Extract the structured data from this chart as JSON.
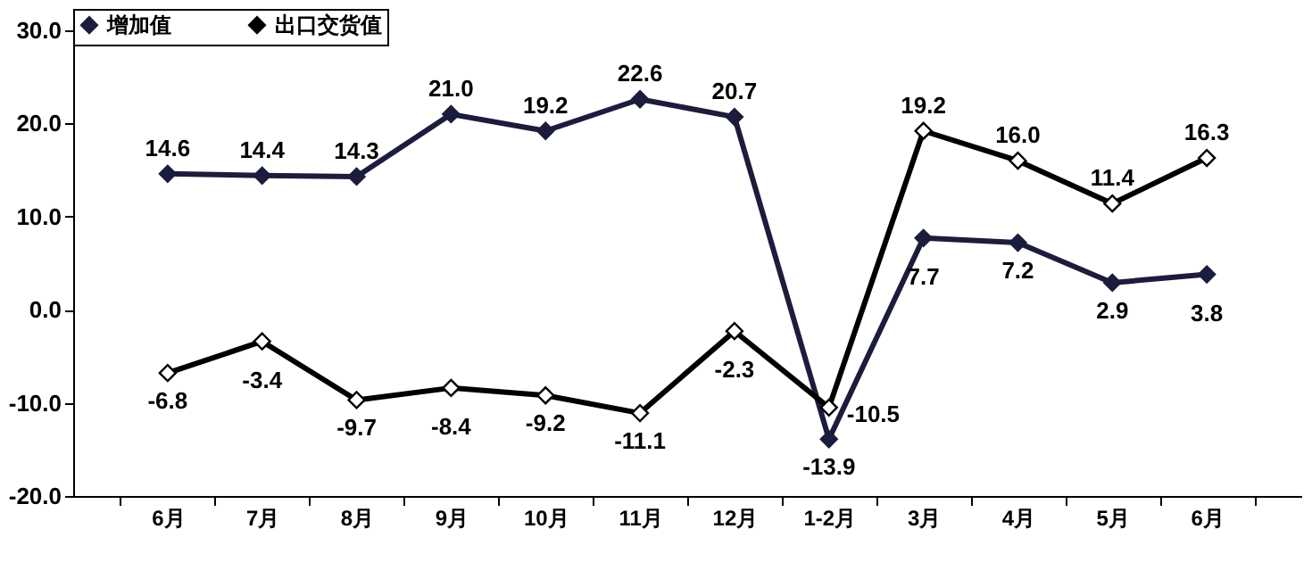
{
  "chart_data": {
    "type": "line",
    "categories": [
      "6月",
      "7月",
      "8月",
      "9月",
      "10月",
      "11月",
      "12月",
      "1-2月",
      "3月",
      "4月",
      "5月",
      "6月"
    ],
    "series": [
      {
        "name": "增加值",
        "color": "#1c1c3c",
        "values": [
          14.6,
          14.4,
          14.3,
          21.0,
          19.2,
          22.6,
          20.7,
          -13.9,
          7.7,
          7.2,
          2.9,
          3.8
        ],
        "value_labels": [
          "14.6",
          "14.4",
          "14.3",
          "21.0",
          "19.2",
          "22.6",
          "20.7",
          "-13.9",
          "7.7",
          "7.2",
          "2.9",
          "3.8"
        ]
      },
      {
        "name": "出口交货值",
        "color": "#000000",
        "values": [
          -6.8,
          -3.4,
          -9.7,
          -8.4,
          -9.2,
          -11.1,
          -2.3,
          -10.5,
          19.2,
          16.0,
          11.4,
          16.3
        ],
        "value_labels": [
          "-6.8",
          "-3.4",
          "-9.7",
          "-8.4",
          "-9.2",
          "-11.1",
          "-2.3",
          "-10.5",
          "19.2",
          "16.0",
          "11.4",
          "16.3"
        ]
      }
    ],
    "ylim": [
      -20,
      30
    ],
    "yticks": [
      {
        "value": -20,
        "label": "-20.0"
      },
      {
        "value": -10,
        "label": "-10.0"
      },
      {
        "value": 0,
        "label": "0.0"
      },
      {
        "value": 10,
        "label": "10.0"
      },
      {
        "value": 20,
        "label": "20.0"
      },
      {
        "value": 30,
        "label": "30.0"
      }
    ],
    "grid": false,
    "legend": "top",
    "marker": "diamond",
    "line_style": "solid"
  }
}
